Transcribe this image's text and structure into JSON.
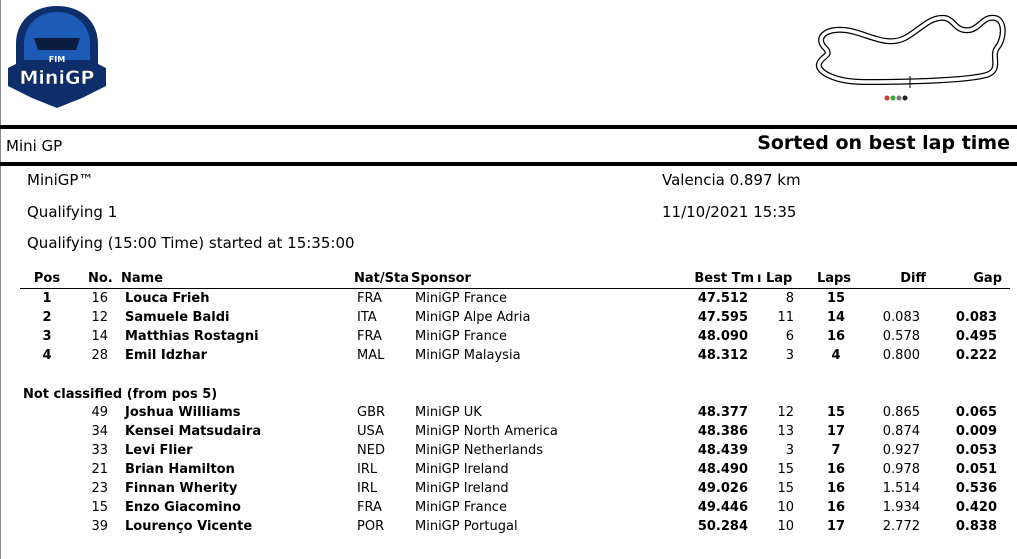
{
  "header": {
    "logo_top": "FIM",
    "logo_text": "MiniGP"
  },
  "title_bar": {
    "left": "Mini GP",
    "right": "Sorted on best lap time"
  },
  "info": {
    "series": "MiniGP™",
    "session": "Qualifying 1",
    "start": "Qualifying (15:00 Time) started at 15:35:00",
    "track": "Valencia 0.897 km",
    "datetime": "11/10/2021 15:35"
  },
  "table": {
    "columns": {
      "pos": "Pos",
      "no": "No.",
      "name": "Name",
      "nat": "Nat/Sta",
      "sponsor": "Sponsor",
      "best": "Best Tm",
      "lap": "ı Lap",
      "laps": "Laps",
      "diff": "Diff",
      "gap": "Gap"
    },
    "rows": [
      {
        "pos": "1",
        "no": "16",
        "name": "Louca Frieh",
        "nat": "FRA",
        "sponsor": "MiniGP France",
        "best": "47.512",
        "lap": "8",
        "laps": "15"
      },
      {
        "pos": "2",
        "no": "12",
        "name": "Samuele Baldi",
        "nat": "ITA",
        "sponsor": "MiniGP Alpe Adria",
        "best": "47.595",
        "lap": "11",
        "laps": "14",
        "diff": "0.083",
        "gap": "0.083"
      },
      {
        "pos": "3",
        "no": "14",
        "name": "Matthias Rostagni",
        "nat": "FRA",
        "sponsor": "MiniGP France",
        "best": "48.090",
        "lap": "6",
        "laps": "16",
        "diff": "0.578",
        "gap": "0.495"
      },
      {
        "pos": "4",
        "no": "28",
        "name": "Emil Idzhar",
        "nat": "MAL",
        "sponsor": "MiniGP Malaysia",
        "best": "48.312",
        "lap": "3",
        "laps": "4",
        "diff": "0.800",
        "gap": "0.222"
      }
    ],
    "section": "Not classified (from pos 5)",
    "unclassified_rows": [
      {
        "no": "49",
        "name": "Joshua Williams",
        "nat": "GBR",
        "sponsor": "MiniGP UK",
        "best": "48.377",
        "lap": "12",
        "laps": "15",
        "diff": "0.865",
        "gap": "0.065"
      },
      {
        "no": "34",
        "name": "Kensei Matsudaira",
        "nat": "USA",
        "sponsor": "MiniGP North America",
        "best": "48.386",
        "lap": "13",
        "laps": "17",
        "diff": "0.874",
        "gap": "0.009"
      },
      {
        "no": "33",
        "name": "Levi Flier",
        "nat": "NED",
        "sponsor": "MiniGP Netherlands",
        "best": "48.439",
        "lap": "3",
        "laps": "7",
        "diff": "0.927",
        "gap": "0.053"
      },
      {
        "no": "21",
        "name": "Brian Hamilton",
        "nat": "IRL",
        "sponsor": "MiniGP Ireland",
        "best": "48.490",
        "lap": "15",
        "laps": "16",
        "diff": "0.978",
        "gap": "0.051"
      },
      {
        "no": "23",
        "name": "Finnan Wherity",
        "nat": "IRL",
        "sponsor": "MiniGP Ireland",
        "best": "49.026",
        "lap": "15",
        "laps": "16",
        "diff": "1.514",
        "gap": "0.536"
      },
      {
        "no": "15",
        "name": "Enzo Giacomino",
        "nat": "FRA",
        "sponsor": "MiniGP France",
        "best": "49.446",
        "lap": "10",
        "laps": "16",
        "diff": "1.934",
        "gap": "0.420"
      },
      {
        "no": "39",
        "name": "Lourenço Vicente",
        "nat": "POR",
        "sponsor": "MiniGP Portugal",
        "best": "50.284",
        "lap": "10",
        "laps": "17",
        "diff": "2.772",
        "gap": "0.838"
      }
    ]
  }
}
